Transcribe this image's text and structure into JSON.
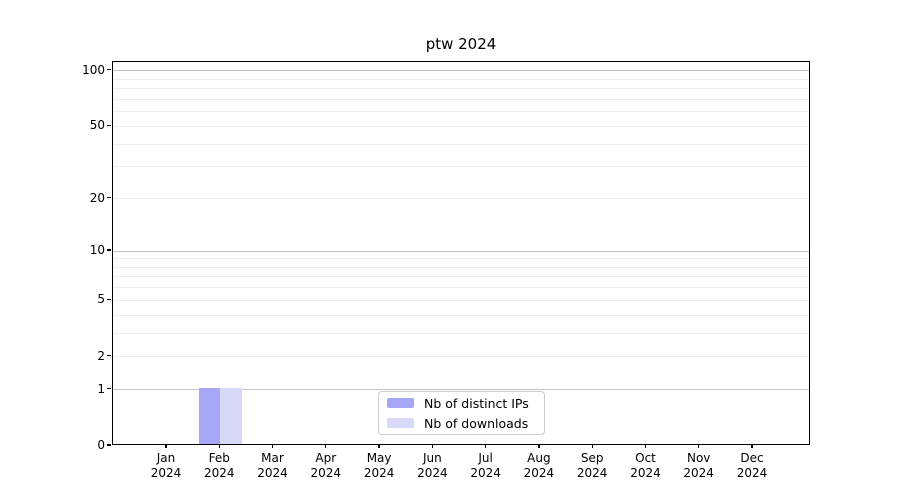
{
  "figure": {
    "title": "ptw 2024"
  },
  "legend": {
    "items": [
      {
        "label": "Nb of distinct IPs",
        "color": "#a7a7f7"
      },
      {
        "label": "Nb of downloads",
        "color": "#d8d8f8"
      }
    ]
  },
  "colors": {
    "bar_distinct_ips": "#a7a7f7",
    "bar_downloads": "#d8d8f8",
    "grid_major": "#c4c4c4",
    "grid_minor": "#ececec",
    "axis": "#000000",
    "legend_border": "#cccccc",
    "text": "#000000"
  },
  "chart_data": {
    "type": "bar",
    "title": "ptw 2024",
    "categories": [
      "Jan 2024",
      "Feb 2024",
      "Mar 2024",
      "Apr 2024",
      "May 2024",
      "Jun 2024",
      "Jul 2024",
      "Aug 2024",
      "Sep 2024",
      "Oct 2024",
      "Nov 2024",
      "Dec 2024"
    ],
    "series": [
      {
        "name": "Nb of distinct IPs",
        "color": "#a7a7f7",
        "values": [
          0,
          1,
          0,
          0,
          0,
          0,
          0,
          0,
          0,
          0,
          0,
          0
        ]
      },
      {
        "name": "Nb of downloads",
        "color": "#d8d8f8",
        "values": [
          0,
          1,
          0,
          0,
          0,
          0,
          0,
          0,
          0,
          0,
          0,
          0
        ]
      }
    ],
    "xlabel": "",
    "ylabel": "",
    "yscale": "log1p",
    "ylim": [
      0,
      112
    ],
    "y_tick_labels": [
      0,
      1,
      2,
      5,
      10,
      20,
      50,
      100
    ],
    "y_major_gridlines": [
      1,
      10,
      100
    ],
    "y_minor_gridlines": [
      2,
      3,
      4,
      5,
      6,
      7,
      8,
      9,
      20,
      30,
      40,
      50,
      60,
      70,
      80,
      90
    ],
    "grid": "horizontal",
    "legend_position": "lower center",
    "bar_group_width_ratio": 0.8
  }
}
